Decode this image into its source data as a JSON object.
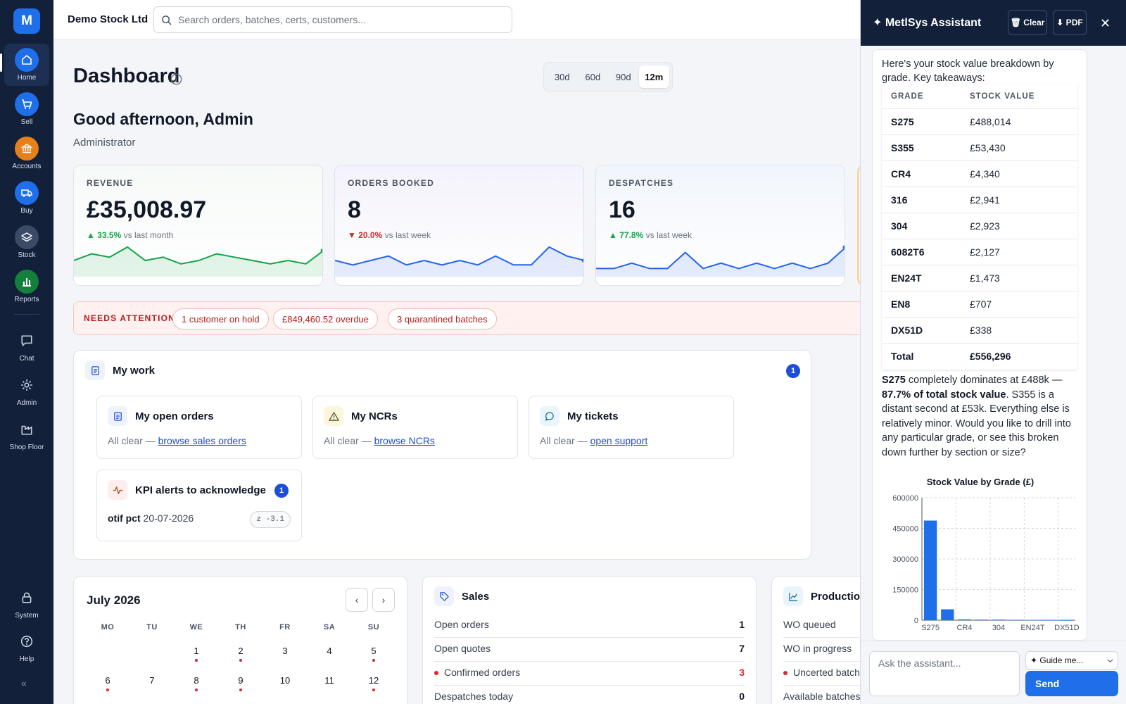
{
  "sidebar": {
    "logo": "M",
    "items": [
      {
        "label": "Home",
        "icon": "home-icon",
        "color": "#1f6feb"
      },
      {
        "label": "Sell",
        "icon": "cart-icon",
        "color": "#1f6feb"
      },
      {
        "label": "Accounts",
        "icon": "bank-icon",
        "color": "#e5801a"
      },
      {
        "label": "Buy",
        "icon": "truck-icon",
        "color": "#1f6feb"
      },
      {
        "label": "Stock",
        "icon": "layers-icon",
        "color": "#3b4a66"
      },
      {
        "label": "Reports",
        "icon": "bar-chart-icon",
        "color": "#15803d"
      },
      {
        "label": "Chat",
        "icon": "chat-icon",
        "color": ""
      },
      {
        "label": "Admin",
        "icon": "gear-icon",
        "color": ""
      },
      {
        "label": "Shop Floor",
        "icon": "factory-icon",
        "color": ""
      },
      {
        "label": "System",
        "icon": "lock-icon",
        "color": ""
      },
      {
        "label": "Help",
        "icon": "help-icon",
        "color": ""
      }
    ],
    "collapse": "«"
  },
  "topbar": {
    "company": "Demo Stock Ltd",
    "search_placeholder": "Search orders, batches, certs, customers..."
  },
  "dashboard": {
    "title": "Dashboard",
    "periods": [
      "30d",
      "60d",
      "90d",
      "12m"
    ],
    "active_period": "12m",
    "greeting": "Good afternoon, Admin",
    "role": "Administrator"
  },
  "kpis": [
    {
      "label": "REVENUE",
      "value": "£35,008.97",
      "direction": "up",
      "arrow": "▲",
      "pct": "33.5%",
      "compare": "vs last month",
      "color": "#16a34a",
      "spark": [
        4,
        6,
        5,
        8,
        4,
        5,
        3,
        4,
        6,
        5,
        4,
        3,
        4,
        3,
        7
      ]
    },
    {
      "label": "ORDERS BOOKED",
      "value": "8",
      "direction": "down",
      "arrow": "▼",
      "pct": "20.0%",
      "compare": "vs last week",
      "color": "#2563eb",
      "spark": [
        3,
        2,
        3,
        4,
        2,
        3,
        2,
        3,
        2,
        4,
        2,
        2,
        6,
        4,
        3
      ]
    },
    {
      "label": "DESPATCHES",
      "value": "16",
      "direction": "up",
      "arrow": "▲",
      "pct": "77.8%",
      "compare": "vs last week",
      "color": "#2563eb",
      "spark": [
        1,
        1,
        2,
        1,
        1,
        4,
        1,
        2,
        1,
        2,
        1,
        2,
        1,
        2,
        5
      ]
    }
  ],
  "attention": {
    "label": "NEEDS ATTENTION",
    "chips": [
      "1 customer on hold",
      "£849,460.52 overdue",
      "3 quarantined batches"
    ]
  },
  "my_work": {
    "title": "My work",
    "count": "1",
    "cards": [
      {
        "title": "My open orders",
        "prefix": "All clear —",
        "link": "browse sales orders"
      },
      {
        "title": "My NCRs",
        "prefix": "All clear —",
        "link": "browse NCRs"
      },
      {
        "title": "My tickets",
        "prefix": "All clear —",
        "link": "open support"
      }
    ],
    "kpi_alerts": {
      "title": "KPI alerts to acknowledge",
      "count": "1",
      "metric": "otif pct",
      "date": "20-07-2026",
      "z": "z -3.1"
    }
  },
  "calendar": {
    "title": "July 2026",
    "prev": "‹",
    "next": "›",
    "dow": [
      "MO",
      "TU",
      "WE",
      "TH",
      "FR",
      "SA",
      "SU"
    ],
    "days": [
      {
        "d": "1",
        "col": 2,
        "row": 0,
        "dot": true
      },
      {
        "d": "2",
        "col": 3,
        "row": 0,
        "dot": true
      },
      {
        "d": "3",
        "col": 4,
        "row": 0,
        "dot": false
      },
      {
        "d": "4",
        "col": 5,
        "row": 0,
        "dot": false
      },
      {
        "d": "5",
        "col": 6,
        "row": 0,
        "dot": true
      },
      {
        "d": "6",
        "col": 0,
        "row": 1,
        "dot": true
      },
      {
        "d": "7",
        "col": 1,
        "row": 1,
        "dot": false
      },
      {
        "d": "8",
        "col": 2,
        "row": 1,
        "dot": true
      },
      {
        "d": "9",
        "col": 3,
        "row": 1,
        "dot": true
      },
      {
        "d": "10",
        "col": 4,
        "row": 1,
        "dot": false
      },
      {
        "d": "11",
        "col": 5,
        "row": 1,
        "dot": false
      },
      {
        "d": "12",
        "col": 6,
        "row": 1,
        "dot": true
      }
    ]
  },
  "sales": {
    "title": "Sales",
    "rows": [
      {
        "label": "Open orders",
        "value": "1",
        "alert": false
      },
      {
        "label": "Open quotes",
        "value": "7",
        "alert": false
      },
      {
        "label": "Confirmed orders",
        "value": "3",
        "alert": true
      },
      {
        "label": "Despatches today",
        "value": "0",
        "alert": false
      }
    ]
  },
  "production": {
    "title": "Production",
    "rows": [
      {
        "label": "WO queued",
        "alert": false
      },
      {
        "label": "WO in progress",
        "alert": false
      },
      {
        "label": "Uncerted batches",
        "alert": true
      },
      {
        "label": "Available batches",
        "alert": false
      }
    ]
  },
  "assistant": {
    "title": "✦ MetlSys Assistant",
    "clear": "🗑 Clear",
    "pdf": "⬇ PDF",
    "close": "✕",
    "intro": "Here's your stock value breakdown by grade. Key takeaways:",
    "table_headers": [
      "GRADE",
      "STOCK VALUE"
    ],
    "table_rows": [
      {
        "grade": "S275",
        "value": "£488,014"
      },
      {
        "grade": "S355",
        "value": "£53,430"
      },
      {
        "grade": "CR4",
        "value": "£4,340"
      },
      {
        "grade": "316",
        "value": "£2,941"
      },
      {
        "grade": "304",
        "value": "£2,923"
      },
      {
        "grade": "6082T6",
        "value": "£2,127"
      },
      {
        "grade": "EN24T",
        "value": "£1,473"
      },
      {
        "grade": "EN8",
        "value": "£707"
      },
      {
        "grade": "DX51D",
        "value": "£338"
      }
    ],
    "total_label": "Total",
    "total_value": "£556,296",
    "summary": {
      "s1_bold": "S275",
      "s1": " completely dominates at £488k —",
      "s2_bold": "87.7% of total stock value",
      "s3": ". S355 is a distant second at £53k. Everything else is relatively minor. Would you like to drill into any particular grade, or see this broken down further by section or size?"
    },
    "input_placeholder": "Ask the assistant...",
    "guide": "✦ Guide me...",
    "send": "Send"
  },
  "chart_data": {
    "type": "bar",
    "title": "Stock Value by Grade (£)",
    "categories": [
      "S275",
      "S355",
      "CR4",
      "316",
      "304",
      "6082T6",
      "EN24T",
      "EN8",
      "DX51D"
    ],
    "values": [
      488014,
      53430,
      4340,
      2941,
      2923,
      2127,
      1473,
      707,
      338
    ],
    "tick_labels_x": [
      "S275",
      "CR4",
      "304",
      "EN24T",
      "DX51D"
    ],
    "yticks": [
      0,
      150000,
      300000,
      450000,
      600000
    ],
    "ylim": [
      0,
      600000
    ],
    "grid": true,
    "color": "#1f6feb"
  }
}
